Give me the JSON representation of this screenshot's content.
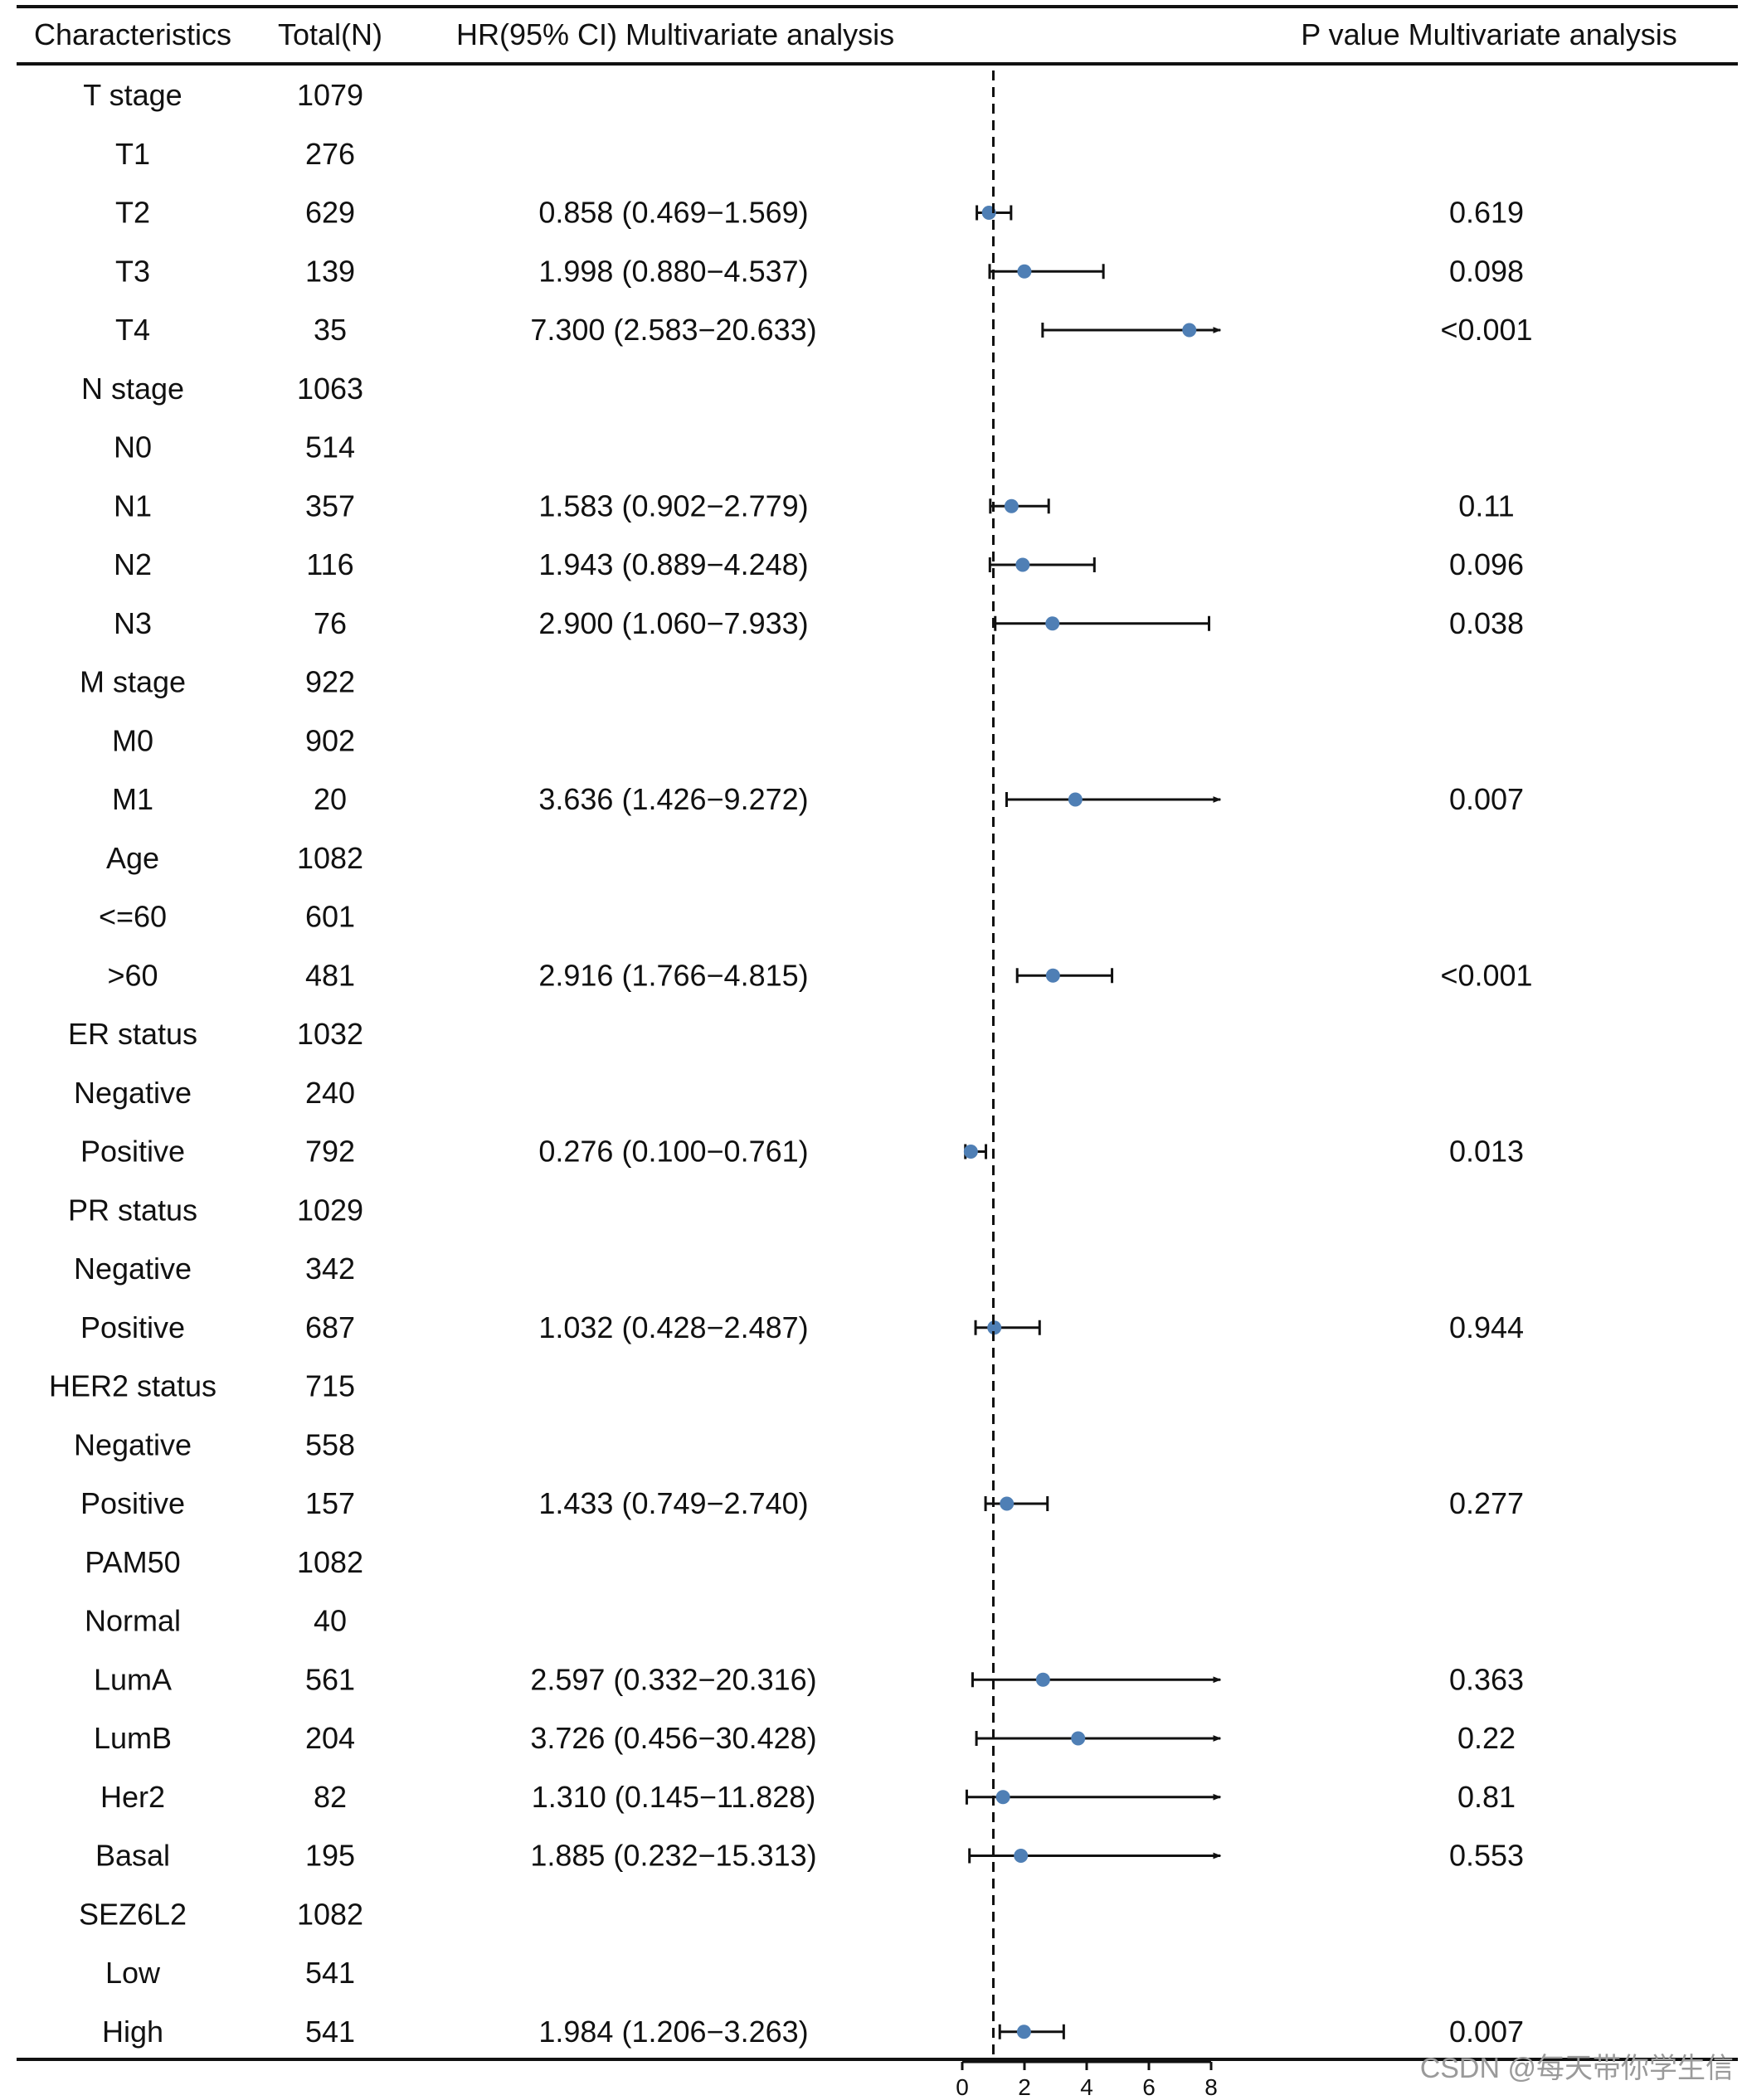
{
  "headers": {
    "characteristics": "Characteristics",
    "total": "Total(N)",
    "hr": "HR(95% CI) Multivariate analysis",
    "p": "P value Multivariate analysis"
  },
  "watermark": "CSDN @每天带你学生信",
  "colors": {
    "point": "#4f7fb5",
    "line": "#111111"
  },
  "chart_data": {
    "type": "forest",
    "title": "",
    "xlabel": "",
    "reference_line": 1,
    "xlim": [
      0,
      8
    ],
    "x_ticks": [
      0,
      2,
      4,
      6,
      8
    ],
    "rows": [
      {
        "label": "T stage",
        "n": "1079",
        "hr_text": "",
        "p_text": ""
      },
      {
        "label": "T1",
        "n": "276",
        "hr_text": "",
        "p_text": ""
      },
      {
        "label": "T2",
        "n": "629",
        "hr_text": "0.858 (0.469−1.569)",
        "p_text": "0.619",
        "hr": 0.858,
        "lo": 0.469,
        "hi": 1.569
      },
      {
        "label": "T3",
        "n": "139",
        "hr_text": "1.998 (0.880−4.537)",
        "p_text": "0.098",
        "hr": 1.998,
        "lo": 0.88,
        "hi": 4.537
      },
      {
        "label": "T4",
        "n": "35",
        "hr_text": "7.300 (2.583−20.633)",
        "p_text": "<0.001",
        "hr": 7.3,
        "lo": 2.583,
        "hi": 20.633
      },
      {
        "label": "N stage",
        "n": "1063",
        "hr_text": "",
        "p_text": ""
      },
      {
        "label": "N0",
        "n": "514",
        "hr_text": "",
        "p_text": ""
      },
      {
        "label": "N1",
        "n": "357",
        "hr_text": "1.583 (0.902−2.779)",
        "p_text": "0.11",
        "hr": 1.583,
        "lo": 0.902,
        "hi": 2.779
      },
      {
        "label": "N2",
        "n": "116",
        "hr_text": "1.943 (0.889−4.248)",
        "p_text": "0.096",
        "hr": 1.943,
        "lo": 0.889,
        "hi": 4.248
      },
      {
        "label": "N3",
        "n": "76",
        "hr_text": "2.900 (1.060−7.933)",
        "p_text": "0.038",
        "hr": 2.9,
        "lo": 1.06,
        "hi": 7.933
      },
      {
        "label": "M stage",
        "n": "922",
        "hr_text": "",
        "p_text": ""
      },
      {
        "label": "M0",
        "n": "902",
        "hr_text": "",
        "p_text": ""
      },
      {
        "label": "M1",
        "n": "20",
        "hr_text": "3.636 (1.426−9.272)",
        "p_text": "0.007",
        "hr": 3.636,
        "lo": 1.426,
        "hi": 9.272
      },
      {
        "label": "Age",
        "n": "1082",
        "hr_text": "",
        "p_text": ""
      },
      {
        "label": "<=60",
        "n": "601",
        "hr_text": "",
        "p_text": ""
      },
      {
        "label": ">60",
        "n": "481",
        "hr_text": "2.916 (1.766−4.815)",
        "p_text": "<0.001",
        "hr": 2.916,
        "lo": 1.766,
        "hi": 4.815
      },
      {
        "label": "ER status",
        "n": "1032",
        "hr_text": "",
        "p_text": ""
      },
      {
        "label": "Negative",
        "n": "240",
        "hr_text": "",
        "p_text": ""
      },
      {
        "label": "Positive",
        "n": "792",
        "hr_text": "0.276 (0.100−0.761)",
        "p_text": "0.013",
        "hr": 0.276,
        "lo": 0.1,
        "hi": 0.761
      },
      {
        "label": "PR status",
        "n": "1029",
        "hr_text": "",
        "p_text": ""
      },
      {
        "label": "Negative",
        "n": "342",
        "hr_text": "",
        "p_text": ""
      },
      {
        "label": "Positive",
        "n": "687",
        "hr_text": "1.032 (0.428−2.487)",
        "p_text": "0.944",
        "hr": 1.032,
        "lo": 0.428,
        "hi": 2.487
      },
      {
        "label": "HER2 status",
        "n": "715",
        "hr_text": "",
        "p_text": ""
      },
      {
        "label": "Negative",
        "n": "558",
        "hr_text": "",
        "p_text": ""
      },
      {
        "label": "Positive",
        "n": "157",
        "hr_text": "1.433 (0.749−2.740)",
        "p_text": "0.277",
        "hr": 1.433,
        "lo": 0.749,
        "hi": 2.74
      },
      {
        "label": "PAM50",
        "n": "1082",
        "hr_text": "",
        "p_text": ""
      },
      {
        "label": "Normal",
        "n": "40",
        "hr_text": "",
        "p_text": ""
      },
      {
        "label": "LumA",
        "n": "561",
        "hr_text": "2.597 (0.332−20.316)",
        "p_text": "0.363",
        "hr": 2.597,
        "lo": 0.332,
        "hi": 20.316
      },
      {
        "label": "LumB",
        "n": "204",
        "hr_text": "3.726 (0.456−30.428)",
        "p_text": "0.22",
        "hr": 3.726,
        "lo": 0.456,
        "hi": 30.428
      },
      {
        "label": "Her2",
        "n": "82",
        "hr_text": "1.310 (0.145−11.828)",
        "p_text": "0.81",
        "hr": 1.31,
        "lo": 0.145,
        "hi": 11.828
      },
      {
        "label": "Basal",
        "n": "195",
        "hr_text": "1.885 (0.232−15.313)",
        "p_text": "0.553",
        "hr": 1.885,
        "lo": 0.232,
        "hi": 15.313
      },
      {
        "label": "SEZ6L2",
        "n": "1082",
        "hr_text": "",
        "p_text": ""
      },
      {
        "label": "Low",
        "n": "541",
        "hr_text": "",
        "p_text": ""
      },
      {
        "label": "High",
        "n": "541",
        "hr_text": "1.984 (1.206−3.263)",
        "p_text": "0.007",
        "hr": 1.984,
        "lo": 1.206,
        "hi": 3.263
      }
    ]
  }
}
